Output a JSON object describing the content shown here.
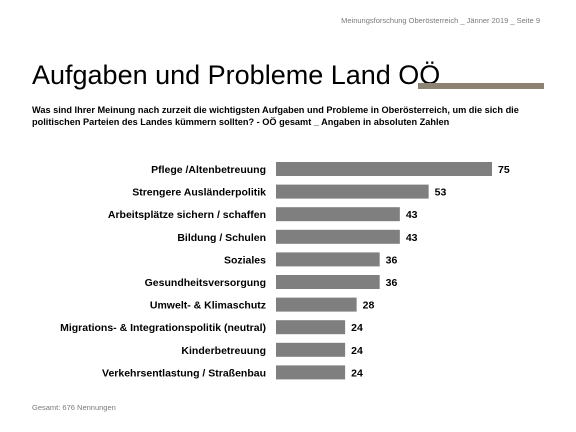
{
  "header": {
    "source_line": "Meinungsforschung Oberösterreich _ Jänner 2019 _ Seite 9"
  },
  "title": "Aufgaben und Probleme Land OÖ",
  "subtitle": "Was sind Ihrer Meinung nach zurzeit die wichtigsten Aufgaben und Probleme in Oberösterreich, um die sich die politischen Parteien des Landes kümmern sollten? - OÖ gesamt _ Angaben in absoluten Zahlen",
  "footer": "Gesamt: 676 Nennungen",
  "colors": {
    "bar": "#7f7f7f",
    "accent_rule": "#8c8372"
  },
  "chart_data": {
    "type": "bar",
    "orientation": "horizontal",
    "title": "",
    "xlabel": "",
    "ylabel": "",
    "grid": false,
    "categories": [
      "Pflege /Altenbetreuung",
      "Strengere Ausländerpolitik",
      "Arbeitsplätze sichern / schaffen",
      "Bildung / Schulen",
      "Soziales",
      "Gesundheitsversorgung",
      "Umwelt- & Klimaschutz",
      "Migrations- & Integrationspolitik (neutral)",
      "Kinderbetreuung",
      "Verkehrsentlastung / Straßenbau"
    ],
    "values": [
      75,
      53,
      43,
      43,
      36,
      36,
      28,
      24,
      24,
      24
    ]
  }
}
